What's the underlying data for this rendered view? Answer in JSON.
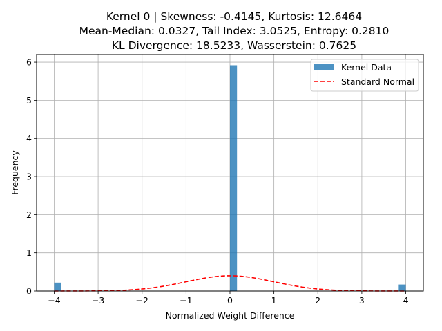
{
  "chart_data": {
    "type": "bar",
    "title_lines": [
      "Kernel 0 | Skewness: -0.4145, Kurtosis: 12.6464",
      "Mean-Median: 0.0327, Tail Index: 3.0525, Entropy: 0.2810",
      "KL Divergence: 18.5233, Wasserstein: 0.7625"
    ],
    "xlabel": "Normalized Weight Difference",
    "ylabel": "Frequency",
    "xlim": [
      -4.4,
      4.4
    ],
    "ylim": [
      0,
      6.2
    ],
    "xticks": [
      -4,
      -3,
      -2,
      -1,
      0,
      1,
      2,
      3,
      4
    ],
    "xtick_labels": [
      "−4",
      "−3",
      "−2",
      "−1",
      "0",
      "1",
      "2",
      "3",
      "4"
    ],
    "yticks": [
      0,
      1,
      2,
      3,
      4,
      5,
      6
    ],
    "ytick_labels": [
      "0",
      "1",
      "2",
      "3",
      "4",
      "5",
      "6"
    ],
    "grid": true,
    "legend_position": "top-right",
    "colors": {
      "histogram": "#1f77b4",
      "normal_curve": "#ff0000"
    },
    "histogram": {
      "name": "Kernel Data",
      "bins": [
        {
          "x0": -4.0,
          "x1": -3.84,
          "value": 0.22
        },
        {
          "x0": 0.0,
          "x1": 0.16,
          "value": 5.92
        },
        {
          "x0": 3.84,
          "x1": 4.0,
          "value": 0.17
        }
      ]
    },
    "normal_curve": {
      "name": "Standard Normal",
      "mean": 0,
      "std": 1,
      "x_range": [
        -4,
        4
      ]
    }
  }
}
